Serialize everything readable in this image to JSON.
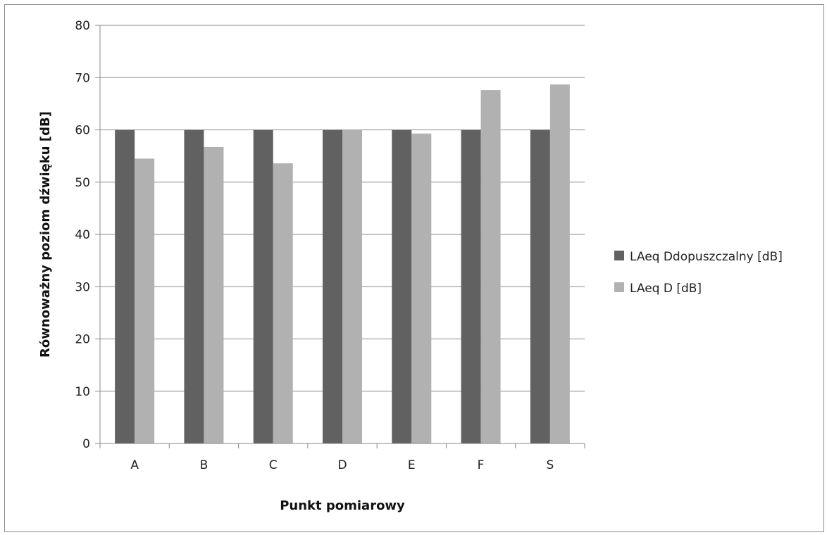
{
  "chart_data": {
    "type": "bar",
    "categories": [
      "A",
      "B",
      "C",
      "D",
      "E",
      "F",
      "S"
    ],
    "series": [
      {
        "name": "LAeq Ddopuszczalny [dB]",
        "color": "#616161",
        "values": [
          60,
          60,
          60,
          60,
          60,
          60,
          60
        ]
      },
      {
        "name": "LAeq D [dB]",
        "color": "#b1b1b1",
        "values": [
          54.5,
          56.7,
          53.6,
          60,
          59.3,
          67.6,
          68.7
        ]
      }
    ],
    "title": "",
    "xlabel": "Punkt pomiarowy",
    "ylabel": "Równoważny poziom dźwięku [dB]",
    "ylim": [
      0,
      80
    ],
    "yticks": [
      0,
      10,
      20,
      30,
      40,
      50,
      60,
      70,
      80
    ],
    "grid": true,
    "legend_position": "right"
  }
}
